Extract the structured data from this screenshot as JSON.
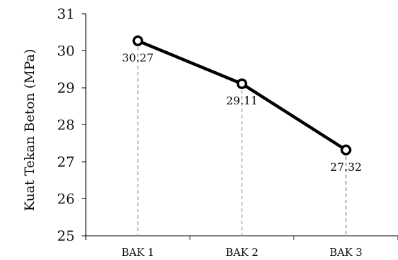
{
  "chart_data": {
    "type": "line",
    "title": "",
    "xlabel": "",
    "ylabel": "Kuat Tekan Beton (MPa)",
    "categories": [
      "BAK 1",
      "BAK 2",
      "BAK 3"
    ],
    "series": [
      {
        "values": [
          30.27,
          29.11,
          27.32
        ],
        "data_labels": [
          "30.27",
          "29.11",
          "27.32"
        ]
      }
    ],
    "ylim": [
      25,
      31
    ],
    "yticks": [
      "25",
      "26",
      "27",
      "28",
      "29",
      "30",
      "31"
    ],
    "grid": false,
    "drop_lines": true,
    "legend": "none",
    "colors": {
      "line": "#000000",
      "drop_line": "#a6a6a6",
      "axis": "#000000"
    }
  }
}
